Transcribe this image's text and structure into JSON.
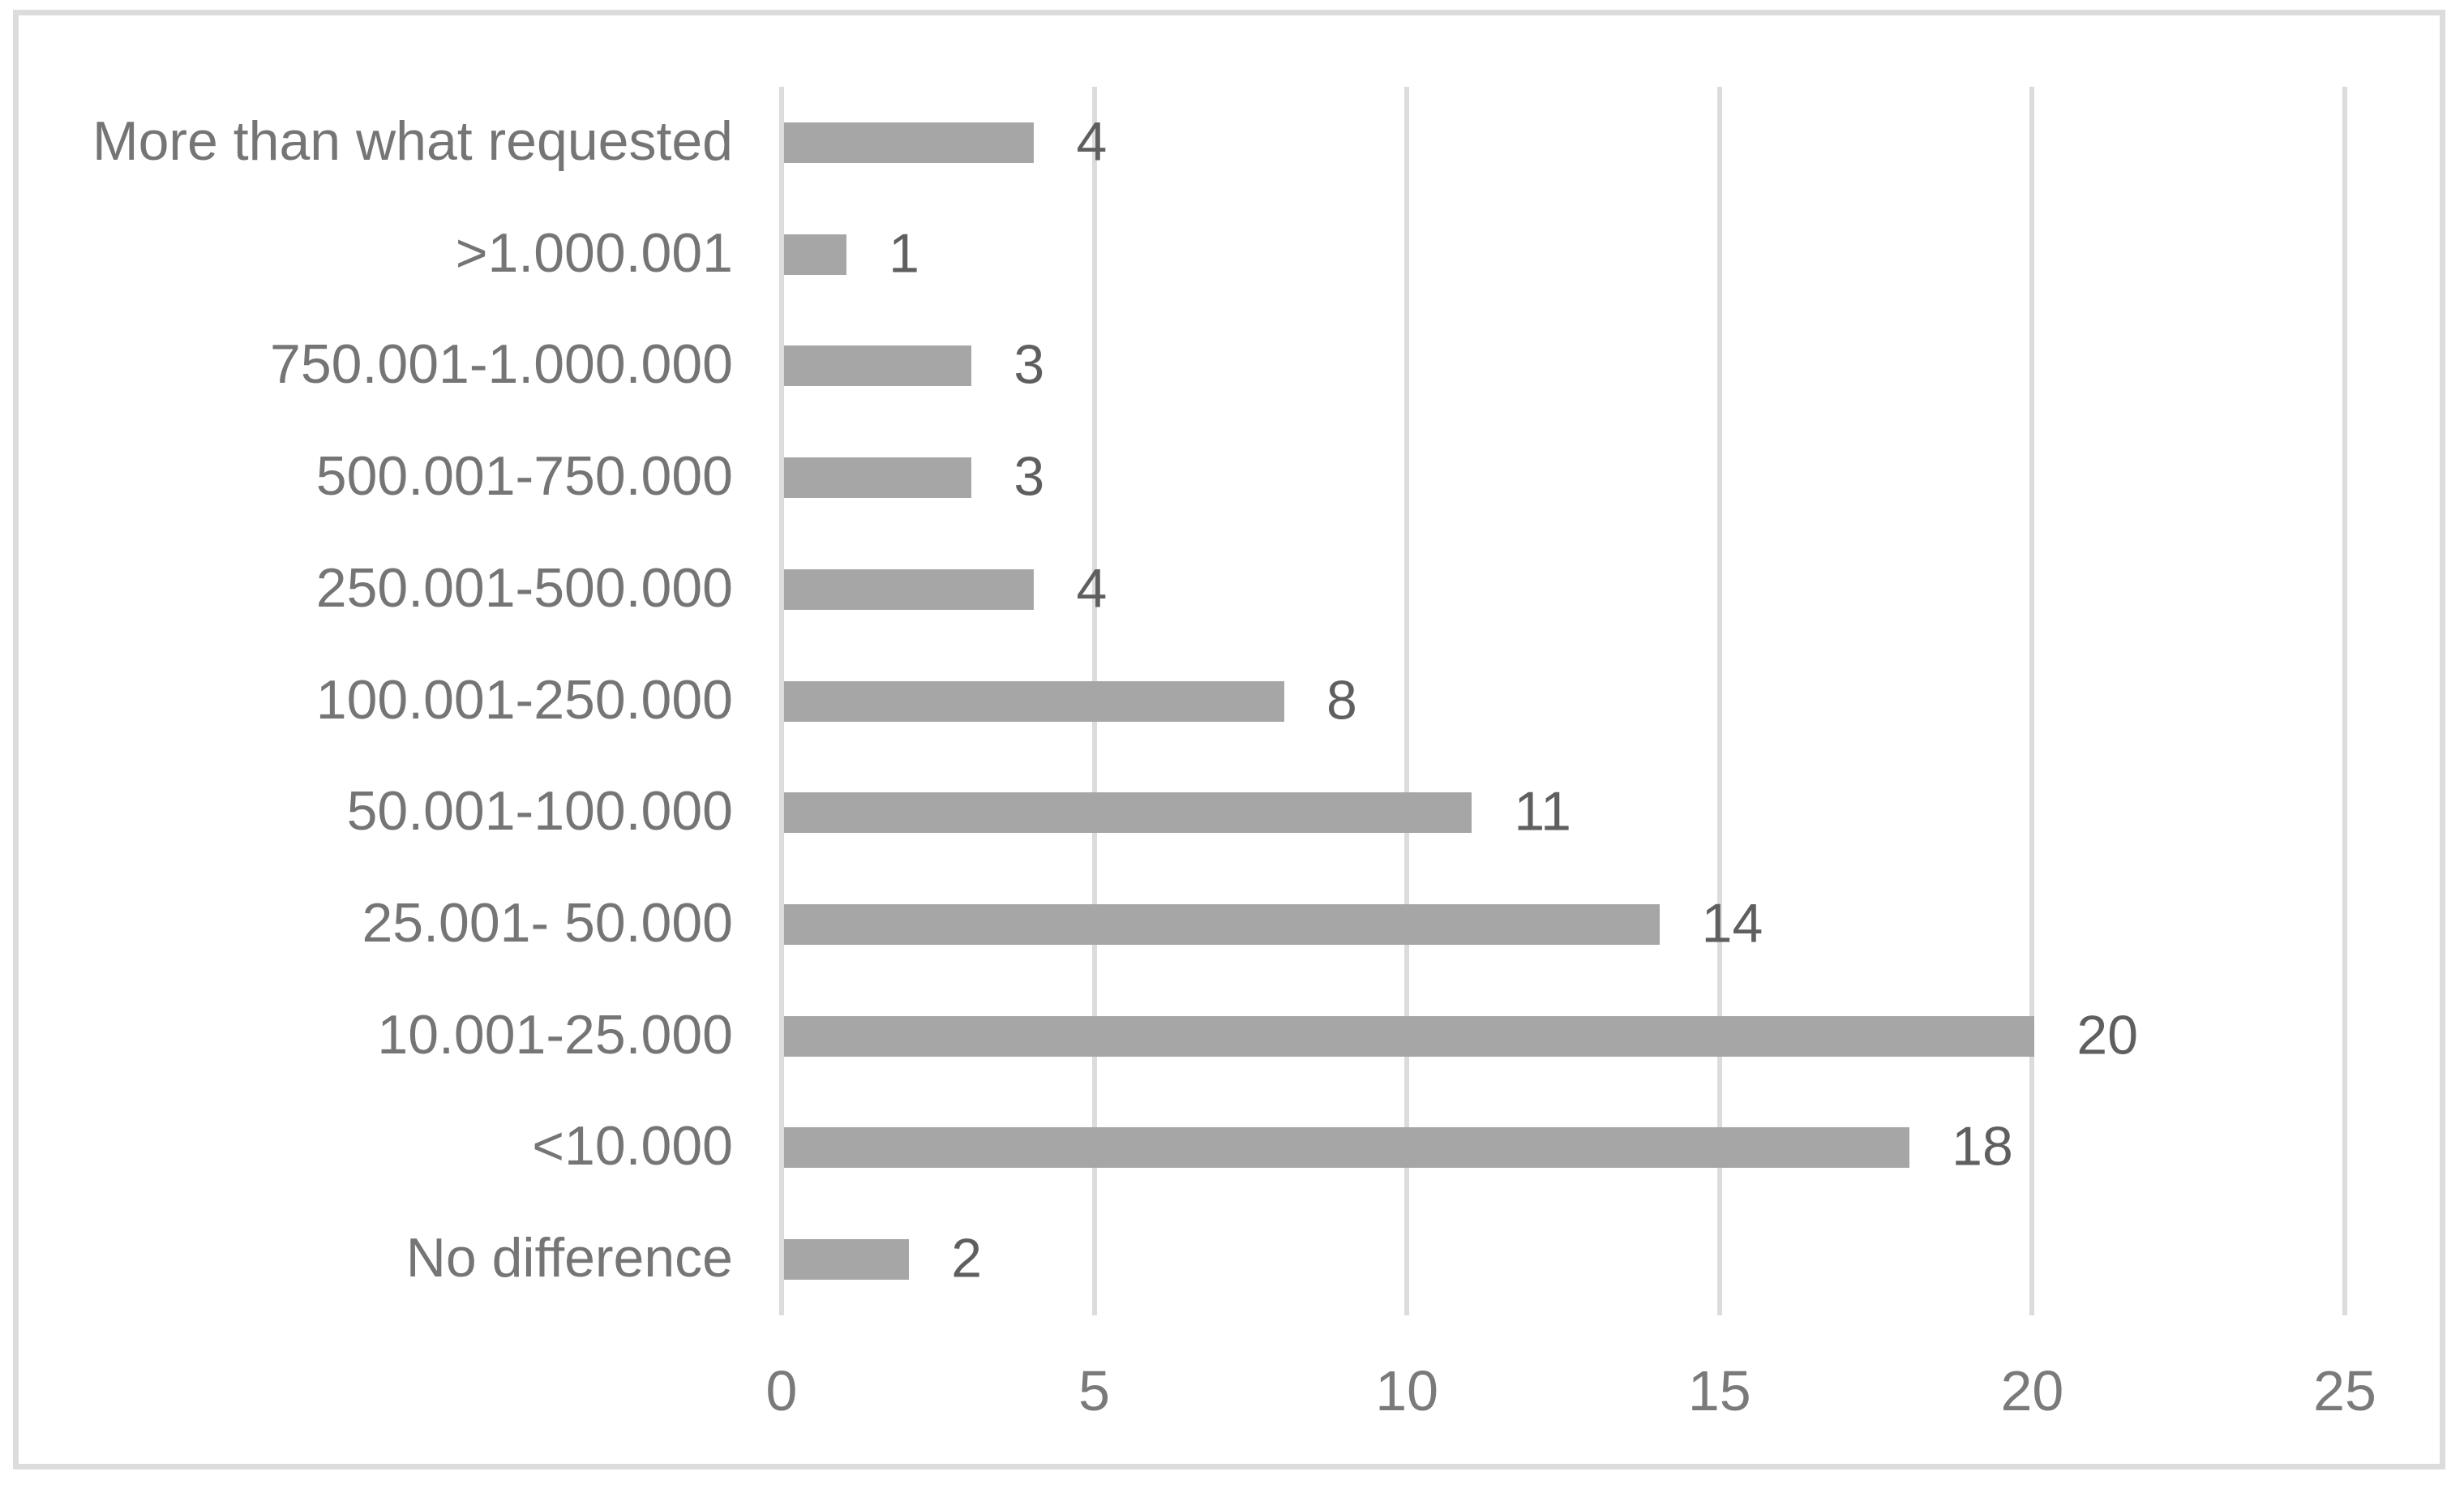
{
  "chart_data": {
    "type": "bar",
    "orientation": "horizontal",
    "title": "",
    "xlabel": "",
    "ylabel": "",
    "categories": [
      "More than what requested",
      ">1.000.001",
      "750.001-1.000.000",
      "500.001-750.000",
      "250.001-500.000",
      "100.001-250.000",
      "50.001-100.000",
      "25.001- 50.000",
      "10.001-25.000",
      "<10.000",
      "No difference"
    ],
    "values": [
      4,
      1,
      3,
      3,
      4,
      8,
      11,
      14,
      20,
      18,
      2
    ],
    "data_labels": [
      "4",
      "1",
      "3",
      "3",
      "4",
      "8",
      "11",
      "14",
      "20",
      "18",
      "2"
    ],
    "xticks": [
      0,
      5,
      10,
      15,
      20,
      25
    ],
    "xlim": [
      0,
      25
    ],
    "grid": "vertical-gridlines-on",
    "legend": "none",
    "colors": {
      "bar_fill": "#a6a6a6",
      "gridline": "#dcdcdc",
      "chart_border": "#dcdcdc",
      "category_label_text": "#757575",
      "value_label_text": "#5f5f5f",
      "tick_label_text": "#7a7a7a",
      "background": "#ffffff"
    }
  }
}
